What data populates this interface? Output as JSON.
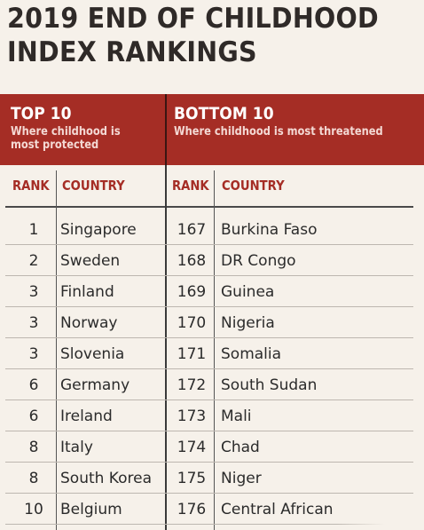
{
  "title": {
    "line1": "2019 END OF CHILDHOOD",
    "line2": "INDEX RANKINGS"
  },
  "banner": {
    "left_head": "TOP 10",
    "left_sub": "Where childhood is most protected",
    "right_head": "BOTTOM 10",
    "right_sub": "Where childhood is most threatened",
    "color": "#a52d25"
  },
  "columns": {
    "rank": "RANK",
    "country": "COUNTRY"
  },
  "top10": [
    {
      "rank": "1",
      "country": "Singapore"
    },
    {
      "rank": "2",
      "country": "Sweden"
    },
    {
      "rank": "3",
      "country": "Finland"
    },
    {
      "rank": "3",
      "country": "Norway"
    },
    {
      "rank": "3",
      "country": "Slovenia"
    },
    {
      "rank": "6",
      "country": "Germany"
    },
    {
      "rank": "6",
      "country": "Ireland"
    },
    {
      "rank": "8",
      "country": "Italy"
    },
    {
      "rank": "8",
      "country": "South Korea"
    },
    {
      "rank": "10",
      "country": "Belgium"
    }
  ],
  "bottom10": [
    {
      "rank": "167",
      "country": "Burkina Faso"
    },
    {
      "rank": "168",
      "country": "DR Congo"
    },
    {
      "rank": "169",
      "country": "Guinea"
    },
    {
      "rank": "170",
      "country": "Nigeria"
    },
    {
      "rank": "171",
      "country": "Somalia"
    },
    {
      "rank": "172",
      "country": "South Sudan"
    },
    {
      "rank": "173",
      "country": "Mali"
    },
    {
      "rank": "174",
      "country": "Chad"
    },
    {
      "rank": "175",
      "country": "Niger"
    },
    {
      "rank": "176",
      "country": "Central African"
    }
  ]
}
